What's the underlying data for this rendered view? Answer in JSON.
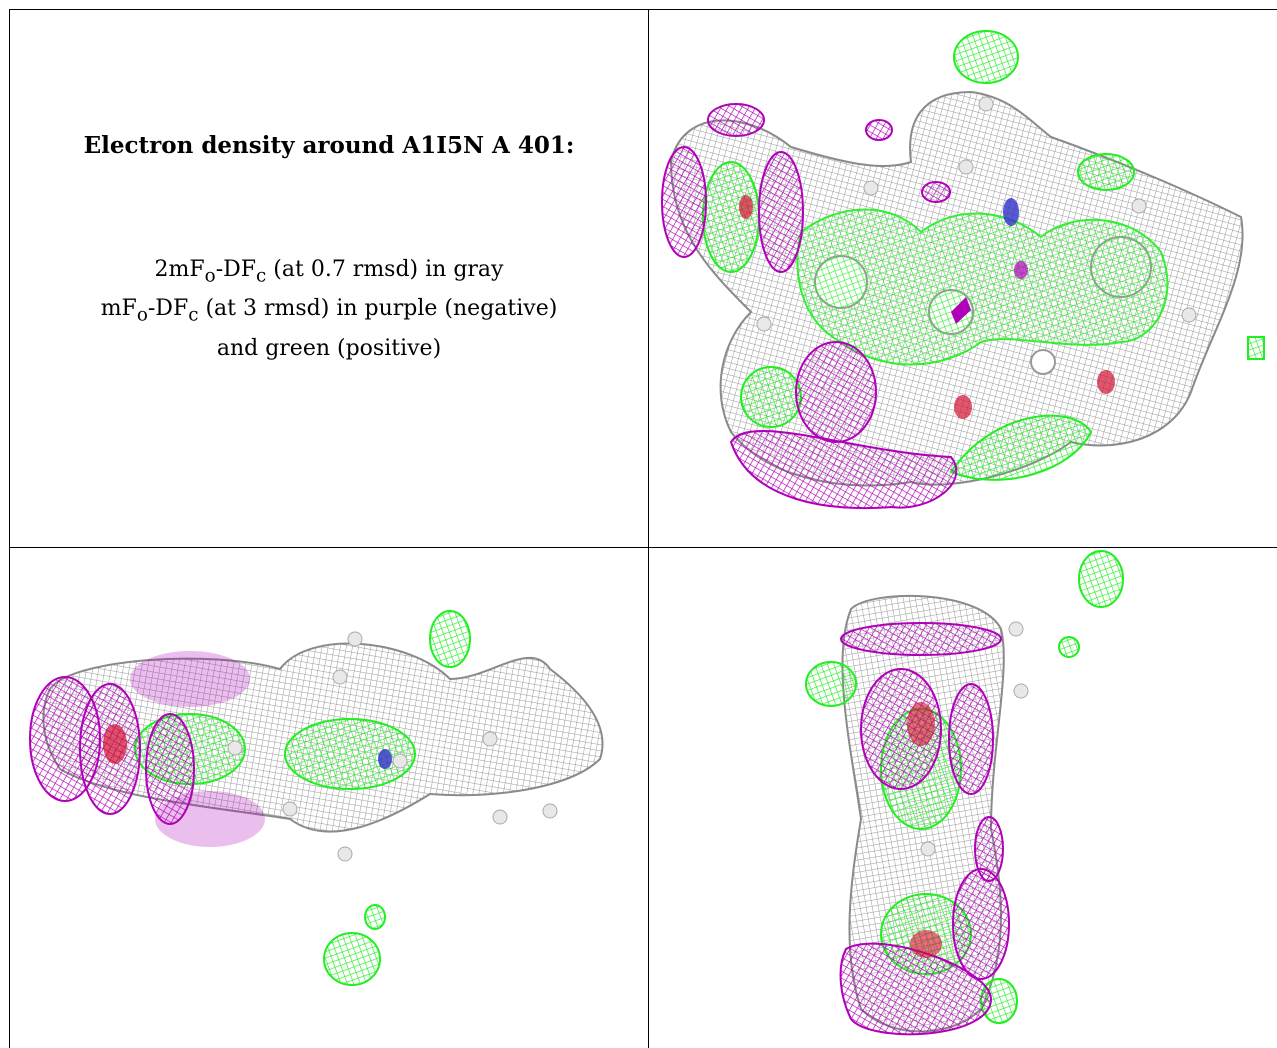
{
  "caption": {
    "title": "Electron density around A1I5N A 401:",
    "line1_prefix": "2mF",
    "line1_sub_o": "o",
    "line1_mid": "-DF",
    "line1_sub_c": "c",
    "line1_suffix": " (at 0.7 rmsd) in gray",
    "line2_prefix": "mF",
    "line2_sub_o": "o",
    "line2_mid": "-DF",
    "line2_sub_c": "c",
    "line2_suffix": " (at 3 rmsd) in purple (negative)",
    "line3": "and green (positive)"
  },
  "colors": {
    "gray_mesh": "#9a9a9a",
    "negative_mesh": "#b000b8",
    "positive_mesh": "#22ee22",
    "nitrogen": "#3030c8",
    "oxygen": "#d01030",
    "hydrogen_sphere": "#e8e8e8"
  },
  "panels": [
    "density-view-top",
    "density-view-side",
    "density-view-end"
  ]
}
